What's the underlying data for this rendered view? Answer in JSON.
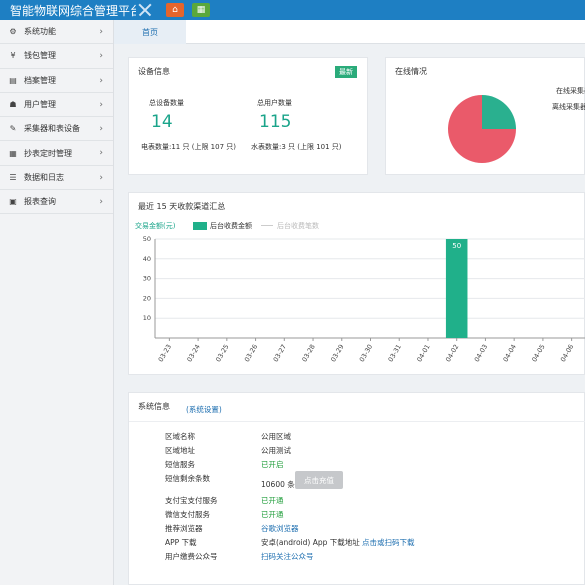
{
  "app": {
    "title": "智能物联网综合管理平台"
  },
  "sidebar": {
    "items": [
      {
        "label": "系统功能",
        "icon": "gears-icon",
        "glyph": "⚙"
      },
      {
        "label": "钱包管理",
        "icon": "yen-icon",
        "glyph": "¥"
      },
      {
        "label": "档案管理",
        "icon": "archive-icon",
        "glyph": "▤"
      },
      {
        "label": "用户管理",
        "icon": "users-icon",
        "glyph": "☗"
      },
      {
        "label": "采集器和表设备",
        "icon": "wrench-icon",
        "glyph": "✎"
      },
      {
        "label": "抄表定时管理",
        "icon": "calendar-icon",
        "glyph": "▦"
      },
      {
        "label": "数据和日志",
        "icon": "database-icon",
        "glyph": "☰"
      },
      {
        "label": "报表查询",
        "icon": "chart-icon",
        "glyph": "▣"
      }
    ]
  },
  "tabs": {
    "home": "首页"
  },
  "device": {
    "title": "设备信息",
    "badge": "最新",
    "device_count_label": "总设备数量",
    "device_count": "14",
    "user_count_label": "总用户数量",
    "user_count": "115",
    "electric_meter": "电表数量:11 只 (上限 107 只)",
    "water_meter": "水表数量:3 只 (上限 101 只)"
  },
  "online": {
    "title": "在线情况",
    "legend": [
      "在线采集器",
      "离线采集器"
    ],
    "colors": {
      "online": "#2ab08f",
      "offline": "#ea5a6a"
    },
    "values": {
      "online": 25,
      "offline": 75
    }
  },
  "chart": {
    "title": "最近 15 天收款渠道汇总",
    "legend_items": [
      "后台收费金额",
      "后台收费笔数"
    ]
  },
  "chart_data": {
    "type": "bar",
    "ylabel": "交易金额(元)",
    "ylim": [
      0,
      50
    ],
    "yticks": [
      10,
      20,
      30,
      40,
      50
    ],
    "categories": [
      "03-23",
      "03-24",
      "03-25",
      "03-26",
      "03-27",
      "03-28",
      "03-29",
      "03-30",
      "03-31",
      "04-01",
      "04-02",
      "04-03",
      "04-04",
      "04-05",
      "04-06"
    ],
    "series": [
      {
        "name": "后台收费金额",
        "values": [
          0,
          0,
          0,
          0,
          0,
          0,
          0,
          0,
          0,
          0,
          50,
          0,
          0,
          0,
          0
        ],
        "color": "#20b08a"
      },
      {
        "name": "后台收费笔数",
        "values": [
          0,
          0,
          0,
          0,
          0,
          0,
          0,
          0,
          0,
          0,
          0,
          0,
          0,
          0,
          0
        ],
        "color": "#cccccc"
      }
    ],
    "data_labels": {
      "04-02": "50"
    }
  },
  "system": {
    "title": "系统信息",
    "settings_link": "(系统设置)",
    "rows": [
      {
        "label": "区域名称",
        "value": "公用区域",
        "style": "plain"
      },
      {
        "label": "区域地址",
        "value": "公用测试",
        "style": "plain"
      },
      {
        "label": "短信服务",
        "value": "已开启",
        "style": "green"
      },
      {
        "label": "短信剩余条数",
        "value": "10600 条",
        "style": "plain"
      },
      {
        "label": "支付宝支付服务",
        "value": "已开通",
        "style": "green"
      },
      {
        "label": "微信支付服务",
        "value": "已开通",
        "style": "green"
      },
      {
        "label": "推荐浏览器",
        "value": "谷歌浏览器",
        "style": "link"
      },
      {
        "label": "APP 下载",
        "value": "安卓(android) App 下载地址",
        "link": "点击或扫码下载",
        "style": "plain"
      },
      {
        "label": "用户缴费公众号",
        "value": "扫码关注公众号",
        "style": "link"
      }
    ],
    "sms_button": "点击充值"
  }
}
